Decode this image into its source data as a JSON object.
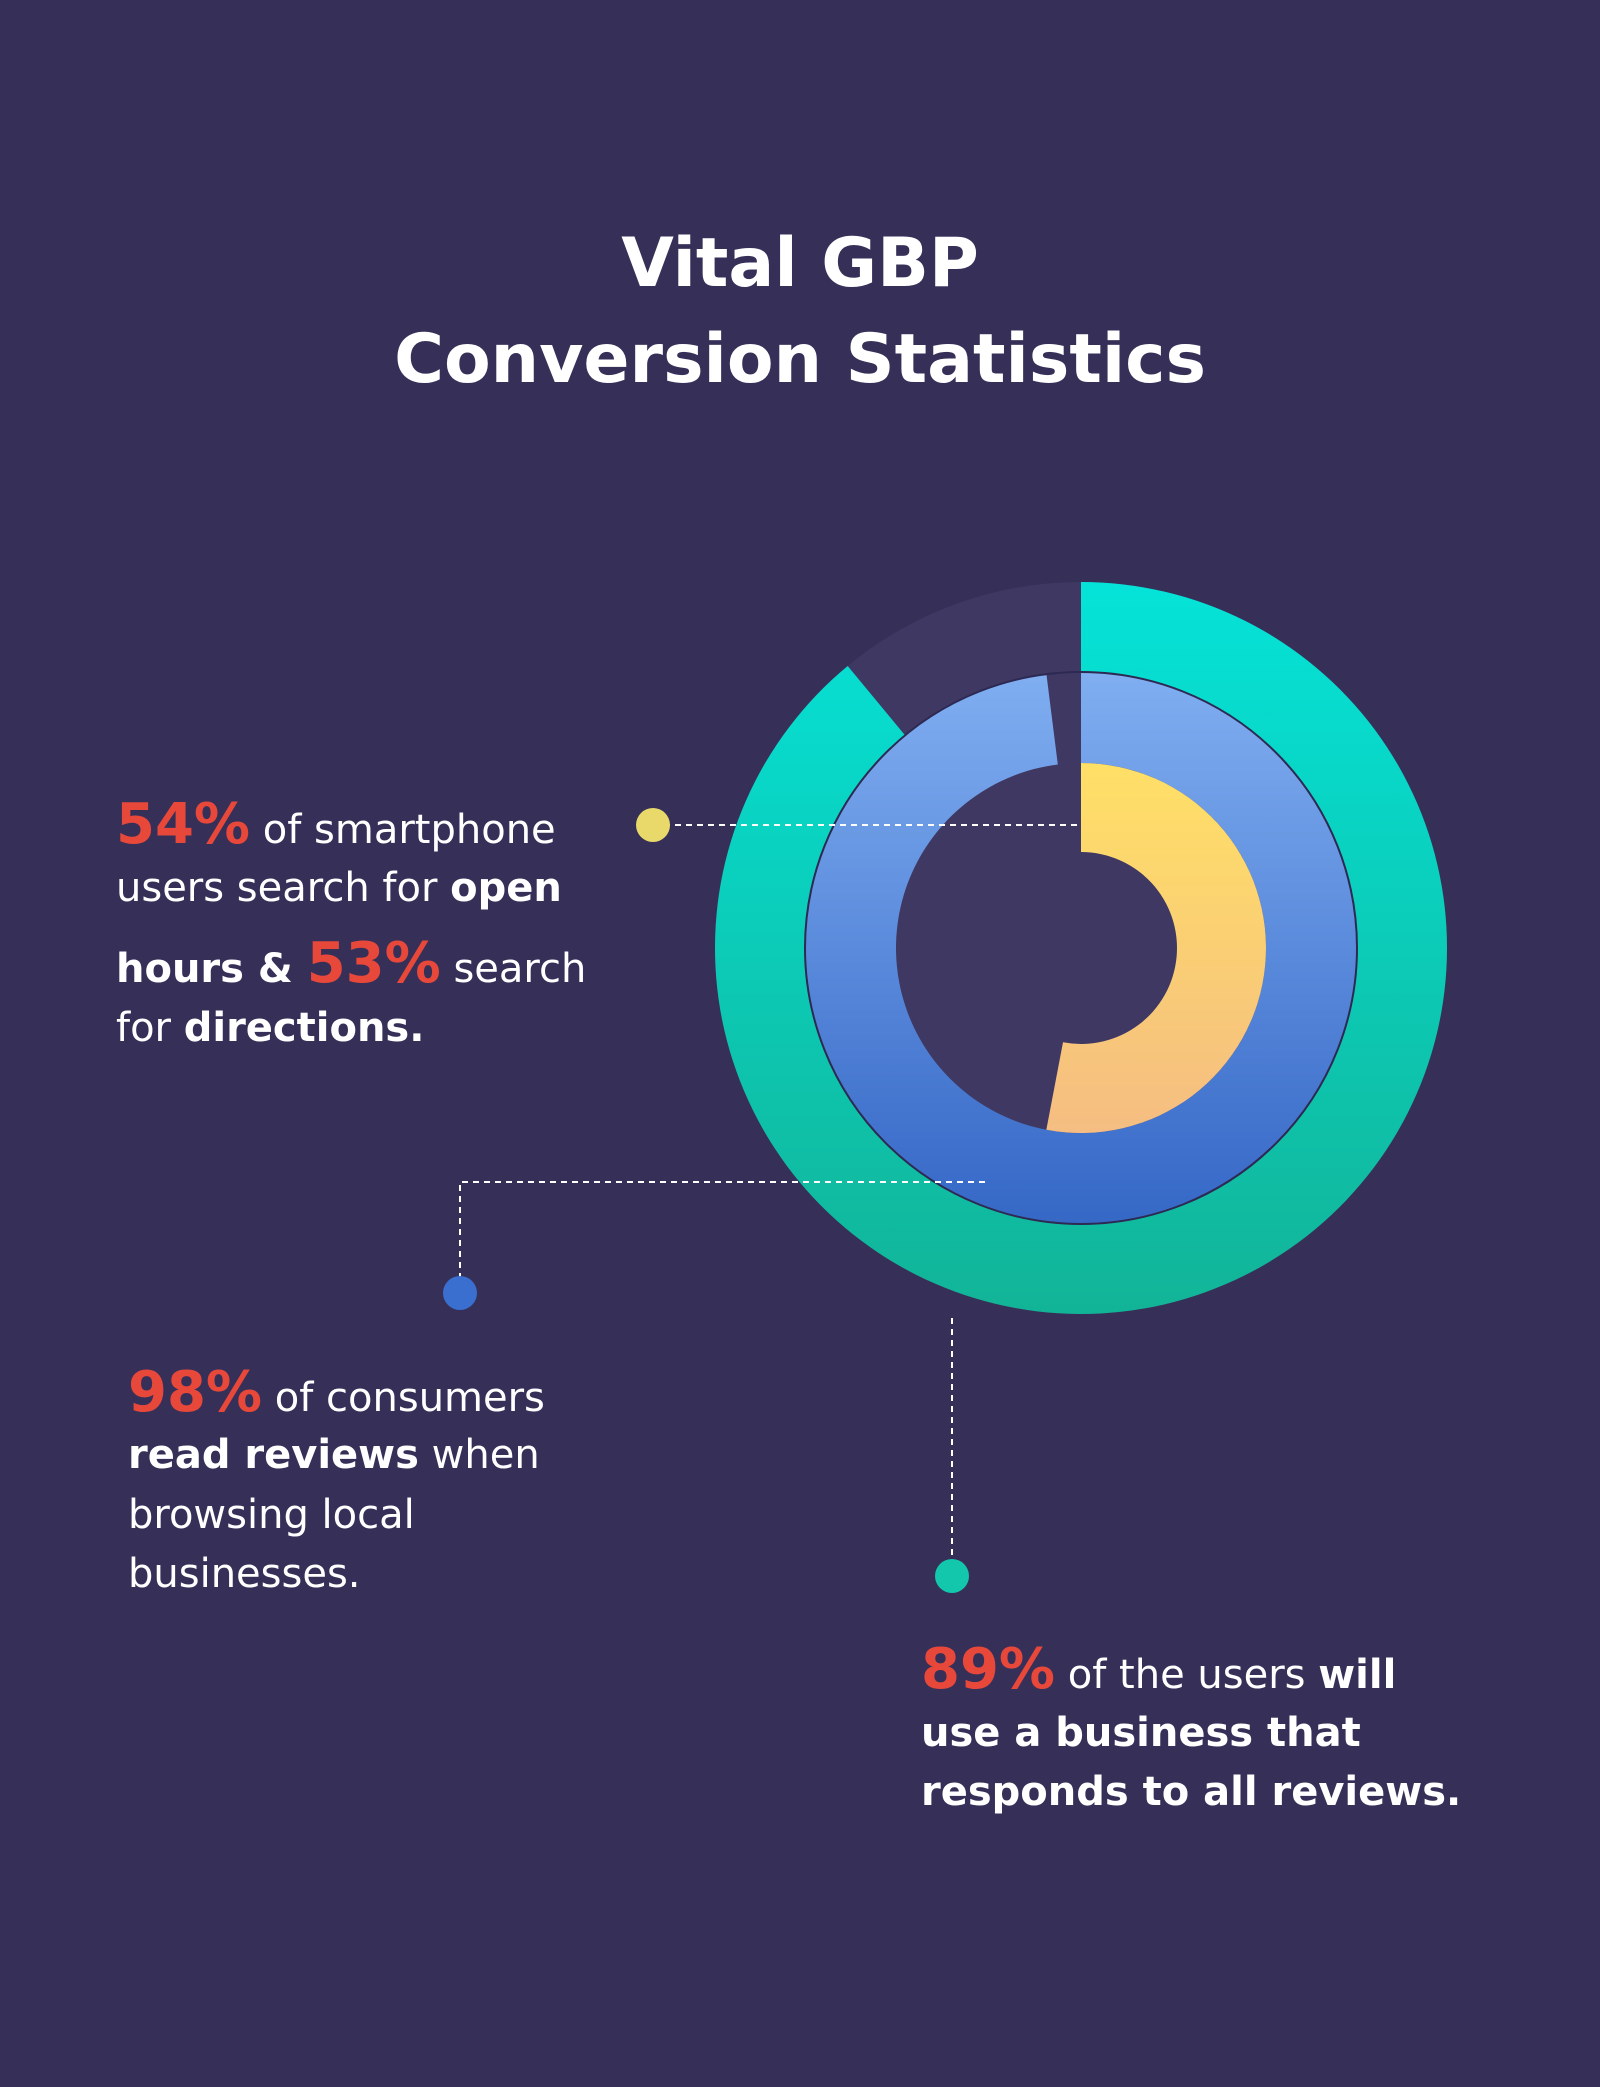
{
  "chart_data": {
    "type": "radial_bar",
    "title": [
      "Vital GBP",
      "Conversion Statistics"
    ],
    "values": [
      89,
      98,
      53
    ],
    "colors": [
      [
        "#05e3d8",
        "#12b497"
      ],
      [
        "#80aef1",
        "#3567c6"
      ],
      [
        "#ffe066",
        "#f5bd82"
      ]
    ],
    "track_color": "#3f3862",
    "annotations": [
      {
        "lines": [
          [
            {
              "text": "54%",
              "style": "highlight"
            },
            {
              "text": " of smartphone",
              "style": "normal"
            }
          ],
          [
            {
              "text": "users search for ",
              "style": "normal"
            },
            {
              "text": "open",
              "style": "bold"
            }
          ],
          [
            {
              "text": "hours & ",
              "style": "bold"
            },
            {
              "text": "53%",
              "style": "highlight"
            },
            {
              "text": " search",
              "style": "normal"
            }
          ],
          [
            {
              "text": "for ",
              "style": "normal"
            },
            {
              "text": "directions.",
              "style": "bold"
            }
          ]
        ]
      },
      {
        "lines": [
          [
            {
              "text": "98%",
              "style": "highlight"
            },
            {
              "text": " of consumers",
              "style": "normal"
            }
          ],
          [
            {
              "text": "read reviews",
              "style": "bold"
            },
            {
              "text": " when",
              "style": "normal"
            }
          ],
          [
            {
              "text": "browsing local",
              "style": "normal"
            }
          ],
          [
            {
              "text": "businesses.",
              "style": "normal"
            }
          ]
        ]
      },
      {
        "lines": [
          [
            {
              "text": "89%",
              "style": "highlight"
            },
            {
              "text": " of the users ",
              "style": "normal"
            },
            {
              "text": "will",
              "style": "bold"
            }
          ],
          [
            {
              "text": "use a business that",
              "style": "bold"
            }
          ],
          [
            {
              "text": "responds to all reviews.",
              "style": "bold"
            }
          ]
        ]
      }
    ]
  }
}
